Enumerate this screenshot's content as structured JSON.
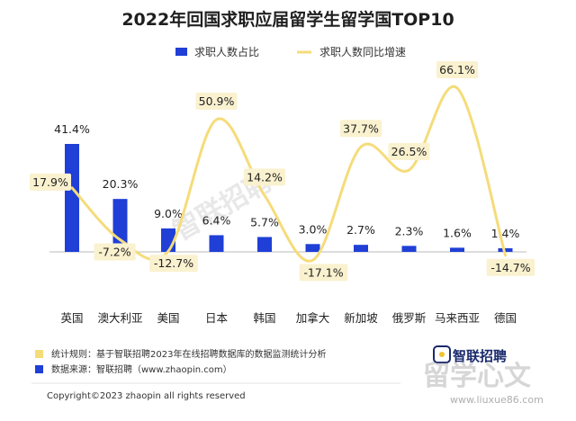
{
  "chart_data": {
    "type": "bar",
    "title": "2022年回国求职应届留学生留学国TOP10",
    "categories": [
      "英国",
      "澳大利亚",
      "美国",
      "日本",
      "韩国",
      "加拿大",
      "新加坡",
      "俄罗斯",
      "马来西亚",
      "德国"
    ],
    "series": [
      {
        "name": "求职人数占比",
        "type": "bar",
        "values": [
          41.4,
          20.3,
          9.0,
          6.4,
          5.7,
          3.0,
          2.7,
          2.3,
          1.6,
          1.4
        ],
        "labels": [
          "41.4%",
          "20.3%",
          "9.0%",
          "6.4%",
          "5.7%",
          "3.0%",
          "2.7%",
          "2.3%",
          "1.6%",
          "1.4%"
        ]
      },
      {
        "name": "求职人数同比增速",
        "type": "line",
        "values": [
          17.9,
          -7.2,
          -12.7,
          50.9,
          14.2,
          -17.1,
          37.7,
          26.5,
          66.1,
          -14.7
        ],
        "labels": [
          "17.9%",
          "-7.2%",
          "-12.7%",
          "50.9%",
          "14.2%",
          "-17.1%",
          "37.7%",
          "26.5%",
          "66.1%",
          "-14.7%"
        ]
      }
    ],
    "legend_position": "top",
    "ylim_bar": [
      0,
      45
    ],
    "ylim_growth": [
      -20,
      70
    ]
  },
  "colors": {
    "bar": "#1f3fd6",
    "line": "#f5dc7a",
    "label_box": "#faf1cf",
    "axis": "#bbbbbb"
  },
  "footnotes": {
    "rule_label": "统计规则：基于智联招聘2023年在线招聘数据库的数据监测统计分析",
    "source_label": "数据来源：智联招聘（www.zhaopin.com）"
  },
  "copyright": "Copyright©2023 zhaopin all rights reserved",
  "branding": {
    "logo": "智联招聘",
    "watermark": "智联招聘",
    "site_watermark": "留学心文",
    "site_url": "www.liuxue86.com"
  }
}
